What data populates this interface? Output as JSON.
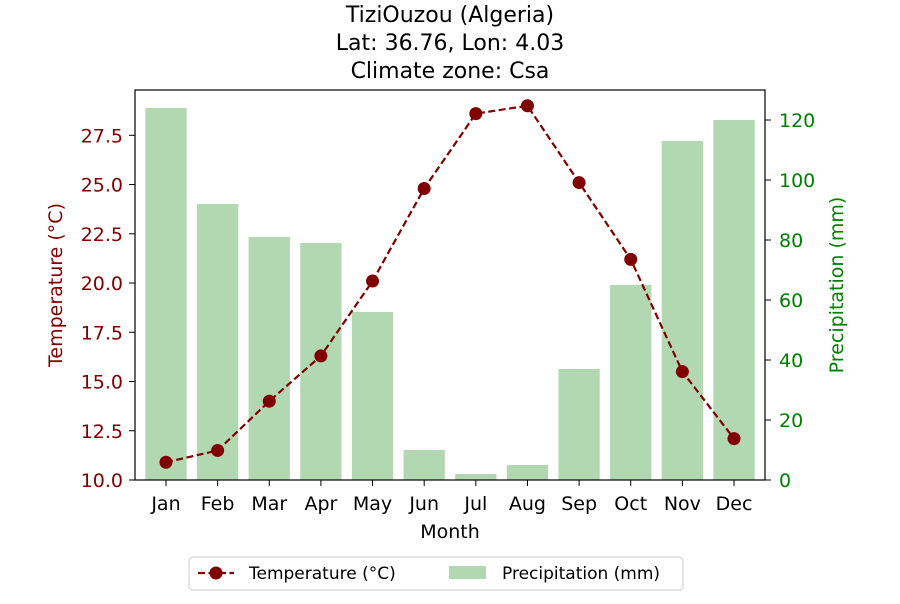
{
  "chart_data": {
    "type": "bar+line",
    "title_lines": [
      "TiziOuzou (Algeria)",
      "Lat: 36.76, Lon: 4.03",
      "Climate zone: Csa"
    ],
    "xlabel": "Month",
    "ylabel_left": "Temperature (°C)",
    "ylabel_right": "Precipitation (mm)",
    "categories": [
      "Jan",
      "Feb",
      "Mar",
      "Apr",
      "May",
      "Jun",
      "Jul",
      "Aug",
      "Sep",
      "Oct",
      "Nov",
      "Dec"
    ],
    "series": [
      {
        "name": "Temperature (°C)",
        "kind": "line",
        "axis": "left",
        "values": [
          10.9,
          11.5,
          14.0,
          16.3,
          20.1,
          24.8,
          28.6,
          29.0,
          25.1,
          21.2,
          15.5,
          12.1
        ],
        "color": "#800000"
      },
      {
        "name": "Precipitation (mm)",
        "kind": "bar",
        "axis": "right",
        "values": [
          124,
          92,
          81,
          79,
          56,
          10,
          2,
          5,
          37,
          65,
          113,
          120
        ],
        "color": "#b2d8b2"
      }
    ],
    "ylim_left": [
      10.0,
      29.8
    ],
    "ylim_right": [
      0,
      130
    ],
    "yticks_left": [
      "10.0",
      "12.5",
      "15.0",
      "17.5",
      "20.0",
      "22.5",
      "25.0",
      "27.5"
    ],
    "yticks_right": [
      "0",
      "20",
      "40",
      "60",
      "80",
      "100",
      "120"
    ],
    "left_axis_color": "#800000",
    "right_axis_color": "#008000",
    "legend_position": "bottom-center",
    "grid": false
  }
}
